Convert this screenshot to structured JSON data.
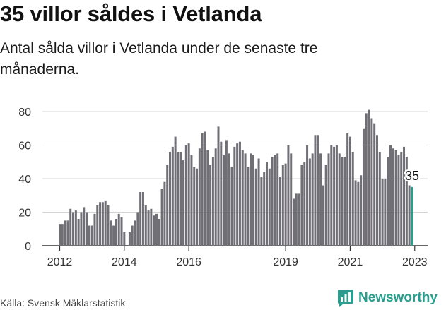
{
  "chart_data": {
    "type": "bar",
    "title": "35 villor såldes i Vetlanda",
    "subtitle": "Antal sålda villor i Vetlanda under de senaste tre månaderna.",
    "xlabel": "",
    "ylabel": "",
    "ylim": [
      0,
      80
    ],
    "yticks": [
      "0",
      "20",
      "40",
      "60",
      "80"
    ],
    "xticks": [
      "2012",
      "2014",
      "2016",
      "2019",
      "2021",
      "2023"
    ],
    "grid": true,
    "values": [
      13,
      13,
      15,
      15,
      22,
      20,
      21,
      16,
      20,
      23,
      20,
      12,
      12,
      19,
      24,
      26,
      26,
      27,
      24,
      15,
      12,
      16,
      19,
      17,
      8,
      0,
      8,
      12,
      15,
      20,
      32,
      32,
      24,
      21,
      22,
      18,
      19,
      16,
      34,
      38,
      48,
      56,
      59,
      65,
      56,
      56,
      51,
      60,
      61,
      54,
      47,
      46,
      58,
      67,
      68,
      57,
      48,
      53,
      58,
      71,
      62,
      54,
      63,
      55,
      47,
      59,
      61,
      62,
      57,
      55,
      47,
      55,
      54,
      46,
      52,
      41,
      44,
      50,
      46,
      53,
      54,
      55,
      41,
      48,
      49,
      60,
      55,
      28,
      31,
      31,
      48,
      50,
      60,
      52,
      55,
      66,
      66,
      55,
      36,
      48,
      55,
      60,
      59,
      60,
      55,
      53,
      53,
      67,
      65,
      56,
      39,
      38,
      42,
      70,
      79,
      81,
      76,
      73,
      66,
      56,
      40,
      40,
      53,
      60,
      58,
      57,
      54,
      56,
      59,
      53,
      36,
      35
    ],
    "last_value_label": "35",
    "highlight_color": "#2a9d8f",
    "bar_color": "#716f76"
  },
  "source_text": "Källa: Svensk Mäklarstatistik",
  "logo_text": "Newsworthy"
}
